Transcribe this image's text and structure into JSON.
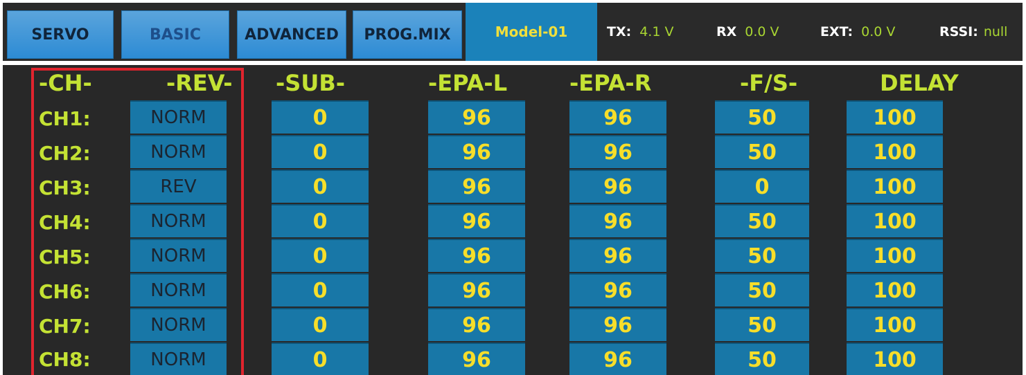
{
  "tabs": [
    {
      "label": "SERVO"
    },
    {
      "label": "BASIC"
    },
    {
      "label": "ADVANCED"
    },
    {
      "label": "PROG.MIX"
    }
  ],
  "model_name": "Model-01",
  "status": {
    "tx_label": "TX:",
    "tx_value": "4.1 V",
    "rx_label": "RX",
    "rx_value": "0.0 V",
    "ext_label": "EXT:",
    "ext_value": "0.0 V",
    "rssi_label": "RSSI:",
    "rssi_value": "null"
  },
  "headers": {
    "ch": "-CH-",
    "rev": "-REV-",
    "sub": "-SUB-",
    "epa_l": "-EPA-L",
    "epa_r": "-EPA-R",
    "fs": "-F/S-",
    "delay": "DELAY"
  },
  "rows": [
    {
      "ch": "CH1:",
      "rev": "NORM",
      "sub": "0",
      "epa_l": "96",
      "epa_r": "96",
      "fs": "50",
      "delay": "100"
    },
    {
      "ch": "CH2:",
      "rev": "NORM",
      "sub": "0",
      "epa_l": "96",
      "epa_r": "96",
      "fs": "50",
      "delay": "100"
    },
    {
      "ch": "CH3:",
      "rev": "REV",
      "sub": "0",
      "epa_l": "96",
      "epa_r": "96",
      "fs": "0",
      "delay": "100"
    },
    {
      "ch": "CH4:",
      "rev": "NORM",
      "sub": "0",
      "epa_l": "96",
      "epa_r": "96",
      "fs": "50",
      "delay": "100"
    },
    {
      "ch": "CH5:",
      "rev": "NORM",
      "sub": "0",
      "epa_l": "96",
      "epa_r": "96",
      "fs": "50",
      "delay": "100"
    },
    {
      "ch": "CH6:",
      "rev": "NORM",
      "sub": "0",
      "epa_l": "96",
      "epa_r": "96",
      "fs": "50",
      "delay": "100"
    },
    {
      "ch": "CH7:",
      "rev": "NORM",
      "sub": "0",
      "epa_l": "96",
      "epa_r": "96",
      "fs": "50",
      "delay": "100"
    },
    {
      "ch": "CH8:",
      "rev": "NORM",
      "sub": "0",
      "epa_l": "96",
      "epa_r": "96",
      "fs": "50",
      "delay": "100"
    }
  ],
  "colors": {
    "tab": "#3d97d8",
    "cell": "#1877a7",
    "label_green": "#c4e234",
    "value_yellow": "#f7de2a",
    "highlight_red": "#e0242e"
  }
}
